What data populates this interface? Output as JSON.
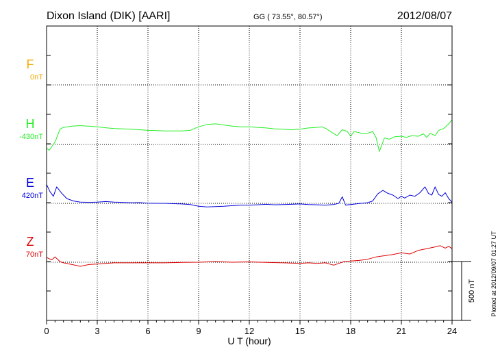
{
  "header": {
    "station": "Dixon Island (DIK)  [AARI]",
    "coords": "GG ( 73.55°,  80.57°)",
    "date": "2012/08/07"
  },
  "side_note": "Plotted at 2012/09/07 01:27 UT",
  "scale_label": "500 nT",
  "chart_data": {
    "type": "line",
    "xlabel": "U T (hour)",
    "xlim": [
      0,
      24
    ],
    "xticks": [
      0,
      3,
      6,
      9,
      12,
      15,
      18,
      21,
      24
    ],
    "series": [
      {
        "name": "F",
        "baseline_label": "0nT",
        "color": "#f5a800",
        "points": []
      },
      {
        "name": "H",
        "baseline_label": "-430nT",
        "color": "#22ee22",
        "points": [
          [
            0,
            -30
          ],
          [
            0.15,
            -50
          ],
          [
            0.3,
            -20
          ],
          [
            0.5,
            20
          ],
          [
            0.8,
            130
          ],
          [
            1.0,
            145
          ],
          [
            1.5,
            155
          ],
          [
            2.0,
            160
          ],
          [
            2.5,
            155
          ],
          [
            3.0,
            150
          ],
          [
            3.5,
            142
          ],
          [
            4.0,
            135
          ],
          [
            4.5,
            132
          ],
          [
            5.0,
            130
          ],
          [
            5.5,
            125
          ],
          [
            6.0,
            120
          ],
          [
            6.5,
            118
          ],
          [
            7.0,
            115
          ],
          [
            7.5,
            115
          ],
          [
            8.0,
            115
          ],
          [
            8.5,
            120
          ],
          [
            9.0,
            150
          ],
          [
            9.5,
            170
          ],
          [
            10.0,
            175
          ],
          [
            10.5,
            165
          ],
          [
            11.0,
            155
          ],
          [
            11.5,
            150
          ],
          [
            12.0,
            150
          ],
          [
            12.5,
            145
          ],
          [
            13.0,
            140
          ],
          [
            13.5,
            132
          ],
          [
            14.0,
            130
          ],
          [
            14.5,
            125
          ],
          [
            15.0,
            130
          ],
          [
            15.5,
            140
          ],
          [
            16.0,
            145
          ],
          [
            16.3,
            150
          ],
          [
            16.6,
            130
          ],
          [
            16.9,
            100
          ],
          [
            17.2,
            75
          ],
          [
            17.5,
            125
          ],
          [
            17.8,
            110
          ],
          [
            18.0,
            70
          ],
          [
            18.2,
            110
          ],
          [
            18.5,
            100
          ],
          [
            18.8,
            90
          ],
          [
            19.0,
            95
          ],
          [
            19.3,
            110
          ],
          [
            19.5,
            60
          ],
          [
            19.7,
            -60
          ],
          [
            20.0,
            55
          ],
          [
            20.3,
            45
          ],
          [
            20.6,
            65
          ],
          [
            21.0,
            70
          ],
          [
            21.3,
            60
          ],
          [
            21.6,
            75
          ],
          [
            22.0,
            70
          ],
          [
            22.3,
            90
          ],
          [
            22.5,
            60
          ],
          [
            22.7,
            95
          ],
          [
            23.0,
            75
          ],
          [
            23.2,
            120
          ],
          [
            23.5,
            135
          ],
          [
            23.8,
            175
          ],
          [
            24.0,
            210
          ]
        ]
      },
      {
        "name": "E",
        "baseline_label": "420nT",
        "color": "#0000dd",
        "points": [
          [
            0,
            160
          ],
          [
            0.2,
            100
          ],
          [
            0.4,
            60
          ],
          [
            0.6,
            140
          ],
          [
            0.9,
            85
          ],
          [
            1.2,
            40
          ],
          [
            1.6,
            20
          ],
          [
            2.0,
            10
          ],
          [
            2.5,
            8
          ],
          [
            3.0,
            10
          ],
          [
            3.5,
            15
          ],
          [
            4.0,
            10
          ],
          [
            4.5,
            8
          ],
          [
            5.0,
            5
          ],
          [
            5.5,
            6
          ],
          [
            6.0,
            2
          ],
          [
            6.5,
            0
          ],
          [
            7.0,
            0
          ],
          [
            7.5,
            -3
          ],
          [
            8.0,
            -5
          ],
          [
            8.5,
            -10
          ],
          [
            9.0,
            -25
          ],
          [
            9.5,
            -30
          ],
          [
            10.0,
            -28
          ],
          [
            10.5,
            -25
          ],
          [
            11.0,
            -20
          ],
          [
            11.5,
            -15
          ],
          [
            12.0,
            -15
          ],
          [
            12.5,
            -12
          ],
          [
            13.0,
            -8
          ],
          [
            13.5,
            -12
          ],
          [
            14.0,
            -10
          ],
          [
            14.5,
            -8
          ],
          [
            15.0,
            -5
          ],
          [
            15.5,
            -10
          ],
          [
            16.0,
            -12
          ],
          [
            16.5,
            -15
          ],
          [
            17.0,
            -10
          ],
          [
            17.3,
            0
          ],
          [
            17.5,
            55
          ],
          [
            17.7,
            -15
          ],
          [
            18.0,
            -10
          ],
          [
            18.3,
            -5
          ],
          [
            18.6,
            0
          ],
          [
            19.0,
            5
          ],
          [
            19.3,
            20
          ],
          [
            19.6,
            80
          ],
          [
            19.9,
            110
          ],
          [
            20.2,
            85
          ],
          [
            20.5,
            70
          ],
          [
            20.8,
            40
          ],
          [
            21.0,
            60
          ],
          [
            21.2,
            45
          ],
          [
            21.5,
            70
          ],
          [
            21.8,
            60
          ],
          [
            22.1,
            90
          ],
          [
            22.4,
            140
          ],
          [
            22.6,
            85
          ],
          [
            22.8,
            70
          ],
          [
            23.0,
            140
          ],
          [
            23.2,
            75
          ],
          [
            23.4,
            60
          ],
          [
            23.6,
            90
          ],
          [
            23.8,
            40
          ],
          [
            24.0,
            10
          ]
        ]
      },
      {
        "name": "Z",
        "baseline_label": "70nT",
        "color": "#dd0000",
        "points": [
          [
            0,
            40
          ],
          [
            0.3,
            20
          ],
          [
            0.5,
            45
          ],
          [
            0.8,
            5
          ],
          [
            1.0,
            -5
          ],
          [
            1.5,
            -20
          ],
          [
            2.0,
            -35
          ],
          [
            2.5,
            -20
          ],
          [
            3.0,
            -15
          ],
          [
            3.5,
            -10
          ],
          [
            4.0,
            -5
          ],
          [
            5.0,
            -5
          ],
          [
            6.0,
            -5
          ],
          [
            7.0,
            -5
          ],
          [
            8.0,
            -2
          ],
          [
            9.0,
            0
          ],
          [
            10.0,
            5
          ],
          [
            11.0,
            0
          ],
          [
            12.0,
            3
          ],
          [
            13.0,
            -2
          ],
          [
            14.0,
            -5
          ],
          [
            15.0,
            -10
          ],
          [
            15.5,
            -5
          ],
          [
            16.0,
            -10
          ],
          [
            16.5,
            -5
          ],
          [
            17.0,
            -25
          ],
          [
            17.3,
            -10
          ],
          [
            17.6,
            5
          ],
          [
            18.0,
            10
          ],
          [
            18.5,
            15
          ],
          [
            19.0,
            25
          ],
          [
            19.5,
            45
          ],
          [
            20.0,
            55
          ],
          [
            20.5,
            65
          ],
          [
            21.0,
            80
          ],
          [
            21.5,
            70
          ],
          [
            22.0,
            100
          ],
          [
            22.5,
            115
          ],
          [
            23.0,
            130
          ],
          [
            23.3,
            140
          ],
          [
            23.6,
            120
          ],
          [
            23.8,
            135
          ],
          [
            24.0,
            115
          ]
        ]
      }
    ]
  }
}
